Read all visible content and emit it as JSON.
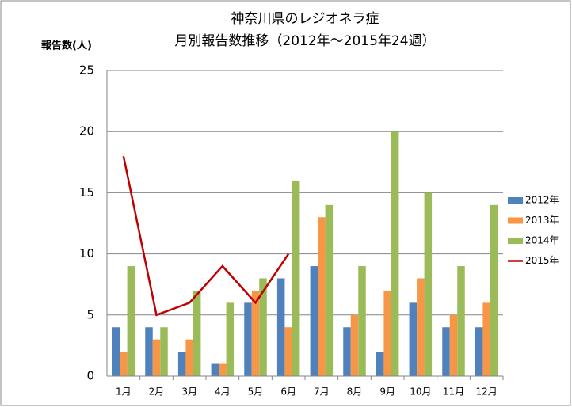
{
  "chart_data": {
    "type": "bar",
    "title": "神奈川県のレジオネラ症",
    "subtitle": "月別報告数推移（2012年～2015年24週）",
    "y_label": "報告数(人)",
    "categories": [
      "1月",
      "2月",
      "3月",
      "4月",
      "5月",
      "6月",
      "7月",
      "8月",
      "9月",
      "10月",
      "11月",
      "12月"
    ],
    "series": [
      {
        "name": "2012年",
        "type": "bar",
        "color": "#4f81bd",
        "values": [
          4,
          4,
          2,
          1,
          6,
          8,
          9,
          4,
          2,
          6,
          4,
          4
        ]
      },
      {
        "name": "2013年",
        "type": "bar",
        "color": "#f79646",
        "values": [
          2,
          3,
          3,
          1,
          7,
          4,
          13,
          5,
          7,
          8,
          5,
          6
        ]
      },
      {
        "name": "2014年",
        "type": "bar",
        "color": "#9bbb59",
        "values": [
          9,
          4,
          7,
          6,
          8,
          16,
          14,
          9,
          20,
          15,
          9,
          14
        ]
      },
      {
        "name": "2015年",
        "type": "line",
        "color": "#c00000",
        "values": [
          18,
          5,
          6,
          9,
          6,
          10,
          null,
          null,
          null,
          null,
          null,
          null
        ]
      }
    ],
    "ylim": [
      0,
      25
    ],
    "yticks": [
      0,
      5,
      10,
      15,
      20,
      25
    ],
    "grid": true,
    "legend": "right"
  }
}
